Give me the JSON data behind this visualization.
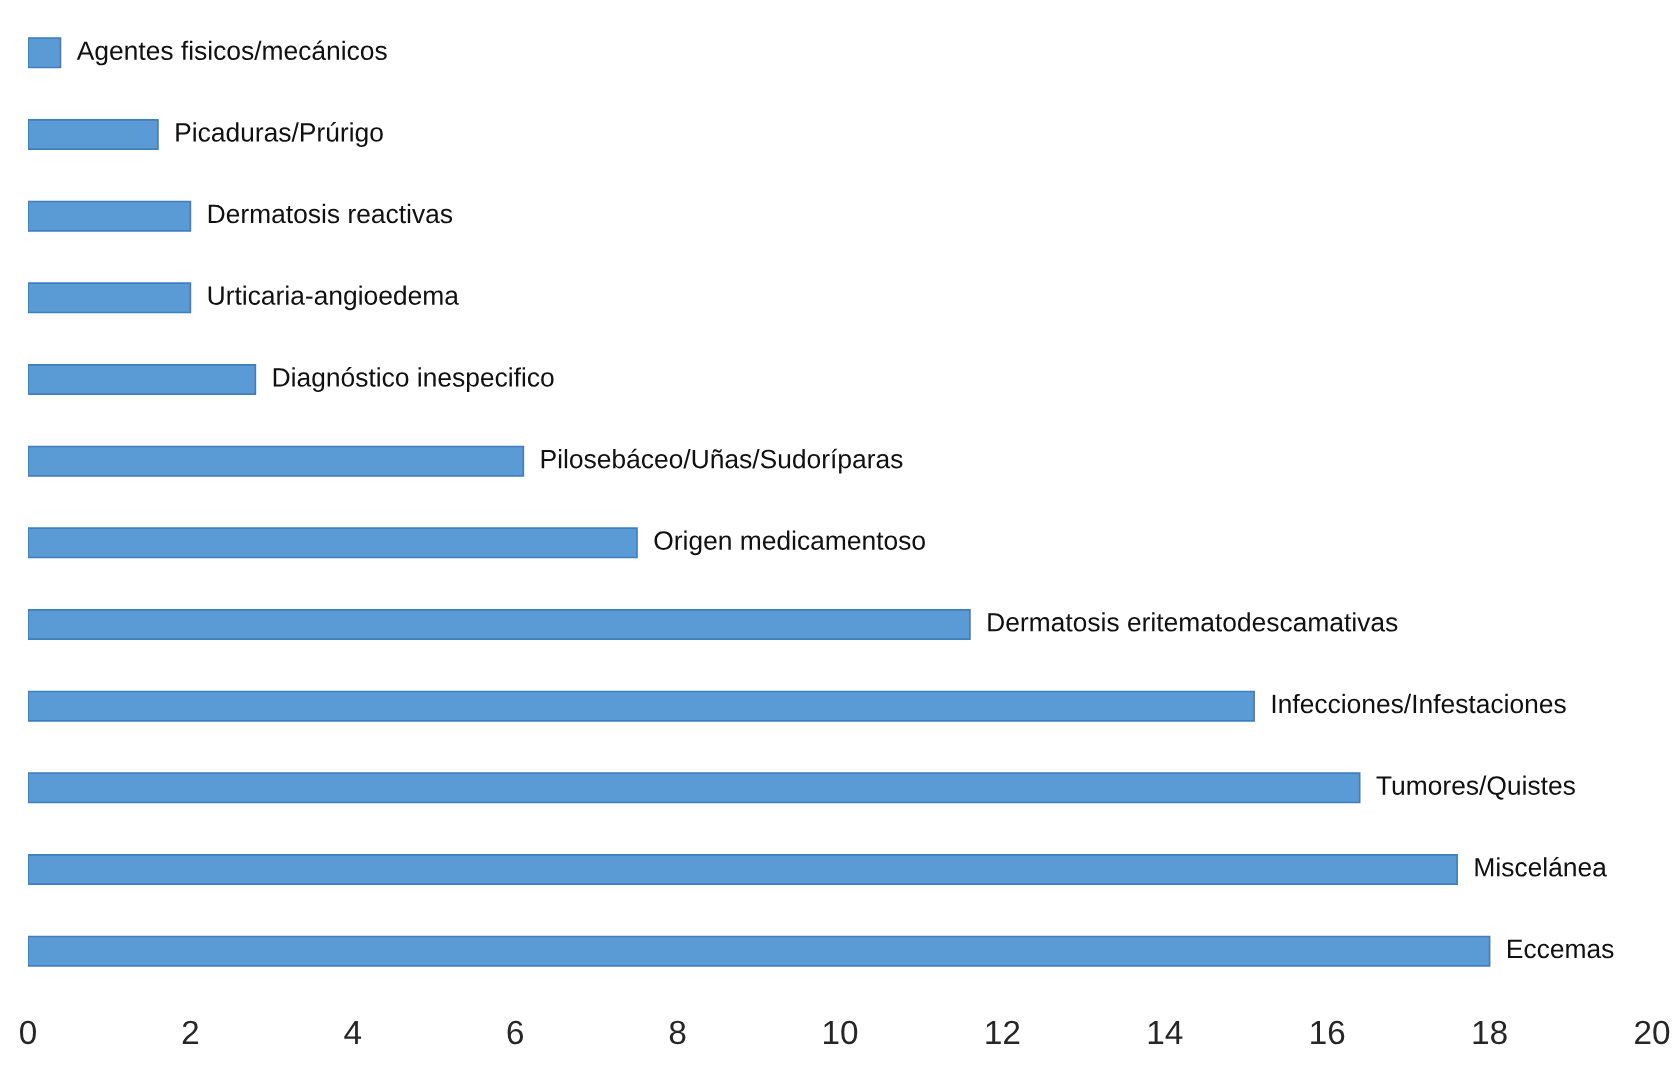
{
  "chart_data": {
    "type": "bar",
    "orientation": "horizontal",
    "categories": [
      "Agentes fisicos/mecánicos",
      "Picaduras/Prúrigo",
      "Dermatosis reactivas",
      "Urticaria-angioedema",
      "Diagnóstico inespecifico",
      "Pilosebáceo/Uñas/Sudoríparas",
      "Origen medicamentoso",
      "Dermatosis eritematodescamativas",
      "Infecciones/Infestaciones",
      "Tumores/Quistes",
      "Miscelánea",
      "Eccemas"
    ],
    "values": [
      0.4,
      1.6,
      2.0,
      2.0,
      2.8,
      6.1,
      7.5,
      11.6,
      15.1,
      16.4,
      17.6,
      18.0
    ],
    "color": "#5b9bd5",
    "xlim": [
      0,
      20
    ],
    "xticks": [
      0,
      2,
      4,
      6,
      8,
      10,
      12,
      14,
      16,
      18,
      20
    ],
    "tick_labels": "x",
    "grid": false,
    "legend": false
  }
}
